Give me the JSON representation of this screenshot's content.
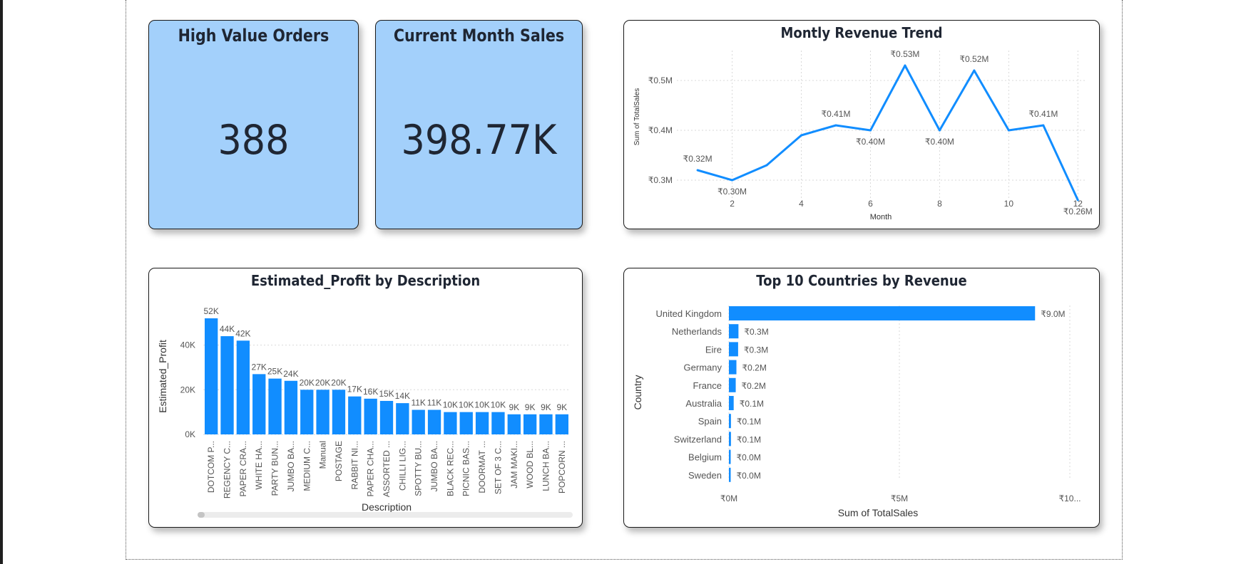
{
  "kpis": [
    {
      "title": "High Value Orders",
      "value": "388"
    },
    {
      "title": "Current Month Sales",
      "value": "398.77K"
    }
  ],
  "colors": {
    "bar": "#118dff",
    "kpi_bg": "#a3d0fb",
    "text": "#1f2633",
    "grid": "#d9d9d9"
  },
  "charts": {
    "line_title": "Montly Revenue Trend",
    "profit_title": "Estimated_Profit by Description",
    "country_title": "Top 10 Countries by Revenue"
  },
  "chart_data": [
    {
      "type": "line",
      "title": "Montly Revenue Trend",
      "xlabel": "Month",
      "ylabel": "Sum of TotalSales",
      "x": [
        1,
        2,
        3,
        4,
        5,
        6,
        7,
        8,
        9,
        10,
        11,
        12
      ],
      "y": [
        0.32,
        0.3,
        0.33,
        0.39,
        0.41,
        0.4,
        0.53,
        0.4,
        0.52,
        0.4,
        0.41,
        0.26
      ],
      "data_labels": [
        "₹0.32M",
        "₹0.30M",
        "",
        "",
        "₹0.41M",
        "₹0.40M",
        "₹0.53M",
        "₹0.40M",
        "₹0.52M",
        "",
        "₹0.41M",
        "₹0.26M"
      ],
      "x_ticks": [
        "2",
        "4",
        "6",
        "8",
        "10",
        "12"
      ],
      "y_ticks": [
        "₹0.3M",
        "₹0.4M",
        "₹0.5M"
      ],
      "ylim": [
        0.26,
        0.56
      ],
      "xlim": [
        0.4,
        12.2
      ],
      "grid": true
    },
    {
      "type": "bar",
      "title": "Estimated_Profit by Description",
      "xlabel": "Description",
      "ylabel": "Estimated_Profit",
      "categories": [
        "DOTCOM P...",
        "REGENCY C...",
        "PAPER CRA...",
        "WHITE HA...",
        "PARTY BUN...",
        "JUMBO BA...",
        "MEDIUM C...",
        "Manual",
        "POSTAGE",
        "RABBIT NI...",
        "PAPER CHA...",
        "ASSORTED ...",
        "CHILLI LIG...",
        "SPOTTY BU...",
        "JUMBO BA...",
        "BLACK REC...",
        "PICNIC BAS...",
        "DOORMAT ...",
        "SET OF 3 C...",
        "JAM MAKI...",
        "WOOD BL...",
        "LUNCH BA...",
        "POPCORN ..."
      ],
      "values": [
        52,
        44,
        42,
        27,
        25,
        24,
        20,
        20,
        20,
        17,
        16,
        15,
        14,
        11,
        11,
        10,
        10,
        10,
        10,
        9,
        9,
        9,
        9
      ],
      "value_unit": "K",
      "data_labels": [
        "52K",
        "44K",
        "42K",
        "27K",
        "25K",
        "24K",
        "20K",
        "20K",
        "20K",
        "17K",
        "16K",
        "15K",
        "14K",
        "11K",
        "11K",
        "10K",
        "10K",
        "10K",
        "10K",
        "9K",
        "9K",
        "9K",
        "9K"
      ],
      "y_ticks": [
        "0K",
        "20K",
        "40K"
      ],
      "ylim": [
        0,
        52
      ],
      "grid": true
    },
    {
      "type": "bar",
      "orientation": "horizontal",
      "title": "Top 10 Countries by Revenue",
      "xlabel": "Sum of TotalSales",
      "ylabel": "Country",
      "categories": [
        "United Kingdom",
        "Netherlands",
        "Eire",
        "Germany",
        "France",
        "Australia",
        "Spain",
        "Switzerland",
        "Belgium",
        "Sweden"
      ],
      "values": [
        8.98,
        0.28,
        0.27,
        0.22,
        0.2,
        0.14,
        0.06,
        0.06,
        0.04,
        0.04
      ],
      "value_unit": "M",
      "data_labels": [
        "₹9.0M",
        "₹0.3M",
        "₹0.3M",
        "₹0.2M",
        "₹0.2M",
        "₹0.1M",
        "₹0.1M",
        "₹0.1M",
        "₹0.0M",
        "₹0.0M"
      ],
      "x_ticks": [
        "₹0M",
        "₹5M",
        "₹10..."
      ],
      "xlim": [
        0,
        10
      ],
      "grid": true
    }
  ]
}
